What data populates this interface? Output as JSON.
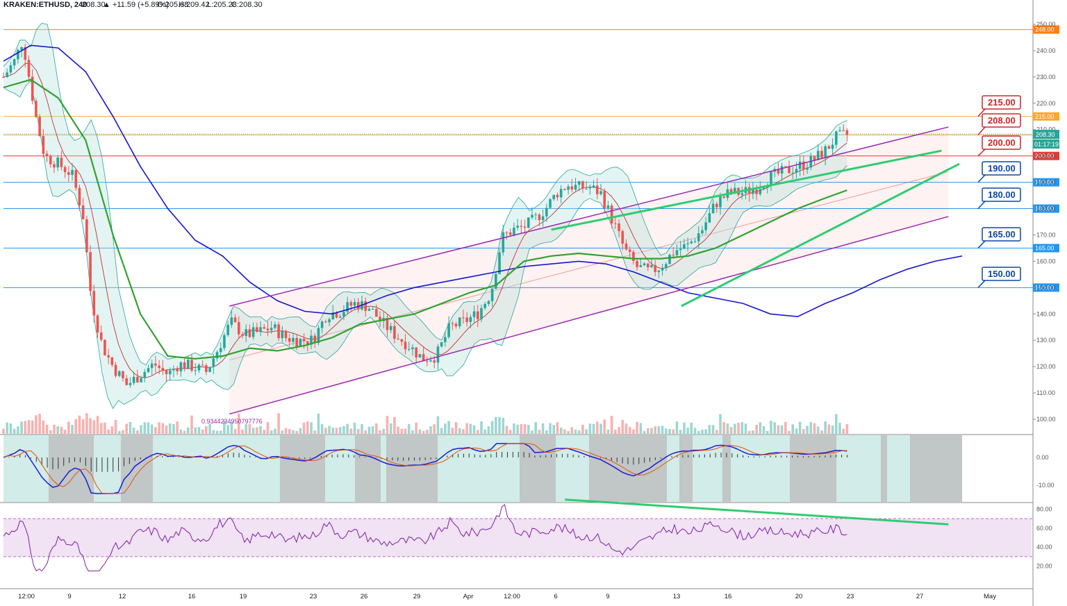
{
  "header": {
    "symbol": "KRAKEN:ETHUSD, 240",
    "last": "208.30",
    "change": "▲ +11.59 (+5.89%)",
    "open": "O:205.68",
    "high": "H:209.42",
    "low": "L:205.28",
    "close": "C:208.30"
  },
  "colors": {
    "bull": "#26a69a",
    "bear": "#ef5350",
    "ma200": "#1515d0",
    "ma50": "#2fa12f",
    "channel": "#9c27b0",
    "trend": "#2ecc71",
    "resistance_orange": "#ff7f0e",
    "support_blue": "#2196f3",
    "red_level": "#e53935",
    "rsi": "#7b1fa2"
  },
  "chart_data": {
    "type": "candlestick",
    "price_axis": {
      "ticks": [
        100,
        110,
        120,
        130,
        140,
        150,
        160,
        170,
        180,
        190,
        200,
        210,
        220,
        230,
        240,
        250
      ],
      "tick_labels": [
        "100.00",
        "110.00",
        "120.00",
        "130.00",
        "140.00",
        "150.00",
        "160.00",
        "170.00",
        "180.00",
        "190.00",
        "200.00",
        "210.00",
        "220.00",
        "230.00",
        "240.00",
        "250.00"
      ],
      "range": [
        93,
        253
      ]
    },
    "x_axis": {
      "labels": [
        "12:00",
        "9",
        "12",
        "16",
        "19",
        "23",
        "26",
        "29",
        "Apr",
        "12:00",
        "6",
        "9",
        "13",
        "16",
        "20",
        "23",
        "27",
        "May"
      ]
    },
    "levels": [
      {
        "value": 248,
        "label": "248.00",
        "color": "#ff7f0e"
      },
      {
        "value": 215,
        "label": "215.00",
        "color": "#ffa726"
      },
      {
        "value": 208,
        "label": "208.00",
        "color": "#ffa726"
      },
      {
        "value": 200,
        "label": "200.00",
        "color": "#e53935"
      },
      {
        "value": 190,
        "label": "190.00",
        "color": "#2196f3"
      },
      {
        "value": 180,
        "label": "180.00",
        "color": "#2196f3"
      },
      {
        "value": 165,
        "label": "165.00",
        "color": "#2196f3"
      },
      {
        "value": 150,
        "label": "150.00",
        "color": "#2196f3"
      }
    ],
    "current_price": {
      "label": "208.30",
      "countdown": "01:17:19",
      "value": 208.3
    },
    "callouts": [
      {
        "label": "215.00",
        "color": "#c62828"
      },
      {
        "label": "208.00",
        "color": "#c62828"
      },
      {
        "label": "200.00",
        "color": "#c62828"
      },
      {
        "label": "190.00",
        "color": "#0d47a1"
      },
      {
        "label": "180.00",
        "color": "#0d47a1"
      },
      {
        "label": "165.00",
        "color": "#0d47a1"
      },
      {
        "label": "150.00",
        "color": "#0d47a1"
      }
    ],
    "annotation_value": "0.9344234950797776",
    "close_path": [
      [
        0,
        230
      ],
      [
        8,
        236
      ],
      [
        14,
        244
      ],
      [
        18,
        232
      ],
      [
        24,
        214
      ],
      [
        30,
        200
      ],
      [
        40,
        197
      ],
      [
        50,
        193
      ],
      [
        58,
        178
      ],
      [
        64,
        146
      ],
      [
        72,
        128
      ],
      [
        80,
        120
      ],
      [
        90,
        113
      ],
      [
        100,
        117
      ],
      [
        110,
        121
      ],
      [
        120,
        117
      ],
      [
        128,
        121
      ],
      [
        138,
        120
      ],
      [
        148,
        118
      ],
      [
        156,
        126
      ],
      [
        166,
        137
      ],
      [
        176,
        132
      ],
      [
        186,
        133
      ],
      [
        196,
        135
      ],
      [
        206,
        131
      ],
      [
        216,
        130
      ],
      [
        226,
        130
      ],
      [
        236,
        140
      ],
      [
        246,
        141
      ],
      [
        256,
        144
      ],
      [
        266,
        143
      ],
      [
        276,
        137
      ],
      [
        286,
        132
      ],
      [
        296,
        128
      ],
      [
        306,
        123
      ],
      [
        316,
        124
      ],
      [
        326,
        135
      ],
      [
        336,
        137
      ],
      [
        346,
        140
      ],
      [
        356,
        148
      ],
      [
        364,
        169
      ],
      [
        372,
        172
      ],
      [
        380,
        173
      ],
      [
        388,
        176
      ],
      [
        396,
        180
      ],
      [
        404,
        186
      ],
      [
        412,
        189
      ],
      [
        420,
        188
      ],
      [
        428,
        188
      ],
      [
        436,
        186
      ],
      [
        446,
        174
      ],
      [
        454,
        164
      ],
      [
        462,
        158
      ],
      [
        472,
        156
      ],
      [
        480,
        158
      ],
      [
        490,
        164
      ],
      [
        500,
        166
      ],
      [
        510,
        172
      ],
      [
        520,
        182
      ],
      [
        530,
        186
      ],
      [
        540,
        186
      ],
      [
        550,
        188
      ],
      [
        560,
        192
      ],
      [
        570,
        194
      ],
      [
        580,
        196
      ],
      [
        590,
        198
      ],
      [
        600,
        202
      ],
      [
        608,
        207
      ],
      [
        616,
        208
      ]
    ],
    "ma200_path": [
      [
        0,
        236
      ],
      [
        20,
        242
      ],
      [
        40,
        241
      ],
      [
        60,
        232
      ],
      [
        80,
        215
      ],
      [
        100,
        196
      ],
      [
        120,
        180
      ],
      [
        140,
        168
      ],
      [
        160,
        162
      ],
      [
        180,
        152
      ],
      [
        200,
        145
      ],
      [
        220,
        141
      ],
      [
        240,
        140
      ],
      [
        260,
        143
      ],
      [
        280,
        147
      ],
      [
        300,
        150
      ],
      [
        320,
        152
      ],
      [
        340,
        154
      ],
      [
        360,
        156
      ],
      [
        380,
        158
      ],
      [
        400,
        159
      ],
      [
        420,
        160
      ],
      [
        440,
        159
      ],
      [
        460,
        156
      ],
      [
        480,
        152
      ],
      [
        500,
        148
      ],
      [
        520,
        146
      ],
      [
        540,
        144
      ],
      [
        560,
        140
      ],
      [
        580,
        139
      ],
      [
        600,
        144
      ],
      [
        620,
        148
      ],
      [
        640,
        153
      ],
      [
        660,
        157
      ],
      [
        680,
        160
      ],
      [
        700,
        162
      ]
    ],
    "ma50_path": [
      [
        0,
        226
      ],
      [
        20,
        229
      ],
      [
        40,
        222
      ],
      [
        60,
        206
      ],
      [
        80,
        170
      ],
      [
        100,
        140
      ],
      [
        120,
        124
      ],
      [
        140,
        123
      ],
      [
        160,
        124
      ],
      [
        180,
        127
      ],
      [
        200,
        126
      ],
      [
        220,
        128
      ],
      [
        240,
        131
      ],
      [
        260,
        136
      ],
      [
        280,
        138
      ],
      [
        300,
        140
      ],
      [
        320,
        144
      ],
      [
        340,
        148
      ],
      [
        360,
        151
      ],
      [
        380,
        160
      ],
      [
        400,
        162
      ],
      [
        420,
        163
      ],
      [
        440,
        162
      ],
      [
        460,
        161
      ],
      [
        480,
        161
      ],
      [
        500,
        162
      ],
      [
        520,
        165
      ],
      [
        540,
        170
      ],
      [
        560,
        175
      ],
      [
        580,
        180
      ],
      [
        600,
        184
      ],
      [
        616,
        187
      ]
    ],
    "channel": {
      "upper": [
        [
          165,
          143
        ],
        [
          690,
          211
        ]
      ],
      "lower": [
        [
          165,
          102
        ],
        [
          690,
          177
        ]
      ]
    },
    "trendlines": [
      {
        "from": [
          400,
          172
        ],
        "to": [
          685,
          202
        ]
      },
      {
        "from": [
          495,
          143
        ],
        "to": [
          698,
          197
        ]
      }
    ],
    "macd": {
      "ticks": [
        "0.00",
        "-10.00"
      ]
    },
    "rsi": {
      "ticks": [
        "80.00",
        "60.00",
        "40.00",
        "20.00"
      ],
      "band": [
        30,
        70
      ],
      "divergence": {
        "from": [
          410,
          90
        ],
        "to": [
          690,
          64
        ]
      }
    }
  }
}
